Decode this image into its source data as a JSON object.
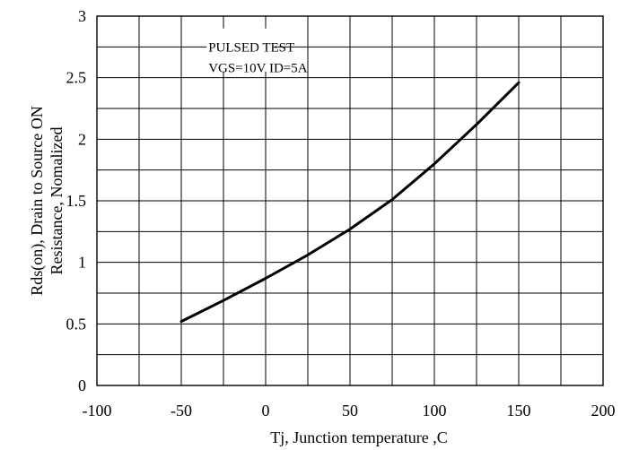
{
  "chart_data": {
    "type": "line",
    "title": "",
    "xlabel": "Tj, Junction temperature ,C",
    "ylabel_lines": [
      "Rds(on), Drain to Source ON",
      "Resistance, Nomalized"
    ],
    "xlim": [
      -100,
      200
    ],
    "ylim": [
      0,
      3
    ],
    "x_ticks": [
      "-100",
      "-50",
      "0",
      "50",
      "100",
      "150",
      "200"
    ],
    "y_ticks": [
      "0",
      "0.5",
      "1",
      "1.5",
      "2",
      "2.5",
      "3"
    ],
    "grid": true,
    "annotations": [
      "PULSED    TEST",
      "VGS=10V    ID=5A"
    ],
    "series": [
      {
        "x": [
          -50,
          -25,
          0,
          25,
          50,
          75,
          100,
          125,
          150
        ],
        "y": [
          0.52,
          0.69,
          0.87,
          1.06,
          1.27,
          1.51,
          1.8,
          2.12,
          2.46
        ]
      }
    ]
  }
}
